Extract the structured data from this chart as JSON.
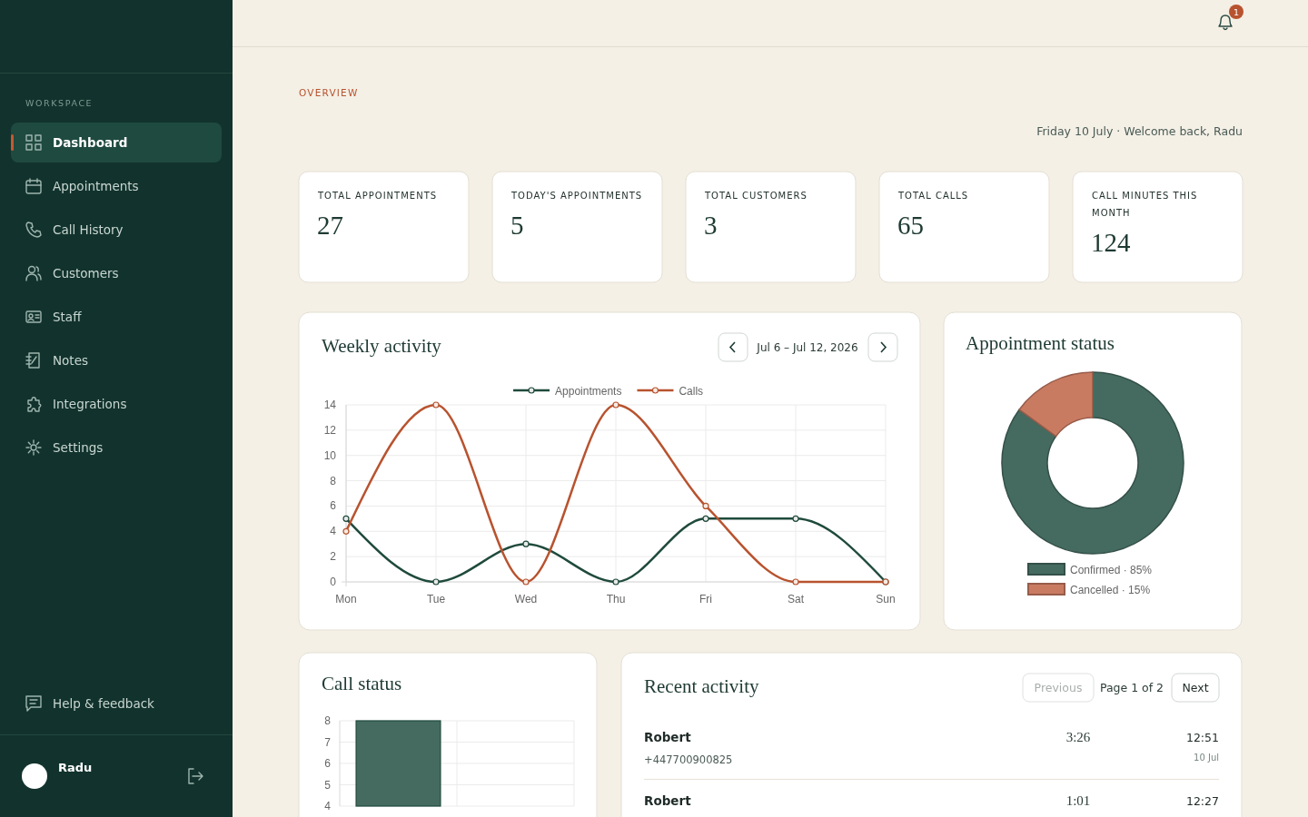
{
  "chart_data": [
    {
      "type": "other",
      "annotations": [
        "WORKSPACE",
        "Dashboard",
        "Appointments",
        "Call History",
        "Customers",
        "Staff",
        "Notes",
        "Integrations",
        "Settings",
        "Help & feedback",
        "Radu"
      ]
    },
    {
      "type": "other",
      "subtitle": "OVERVIEW",
      "annotations": [
        "Friday 10 July · Welcome back, Radu",
        "1"
      ]
    },
    {
      "type": "other",
      "categories": [
        "TOTAL APPOINTMENTS",
        "TODAY'S APPOINTMENTS",
        "TOTAL CUSTOMERS",
        "TOTAL CALLS",
        "CALL MINUTES THIS MONTH"
      ],
      "values": [
        27,
        5,
        3,
        65,
        124
      ],
      "data_labels": true
    },
    {
      "type": "line",
      "title": "Weekly activity",
      "annotations": [
        "Jul 6 – Jul 12, 2026"
      ],
      "categories": [
        "Mon",
        "Tue",
        "Wed",
        "Thu",
        "Fri",
        "Sat",
        "Sun"
      ],
      "series": [
        {
          "name": "Appointments",
          "color": "#1f4a3c",
          "values": [
            5,
            0,
            3,
            0,
            5,
            5,
            0
          ]
        },
        {
          "name": "Calls",
          "color": "#b8532f",
          "values": [
            4,
            14,
            0,
            14,
            6,
            0,
            0
          ]
        }
      ],
      "ylim": [
        0,
        14
      ],
      "yticks": [
        0,
        2,
        4,
        6,
        8,
        10,
        12,
        14
      ],
      "grid": true,
      "legend": "top",
      "marker": "circle"
    },
    {
      "type": "donut",
      "title": "Appointment status",
      "categories": [
        "Confirmed · 85%",
        "Cancelled · 15%"
      ],
      "values": [
        85,
        15
      ],
      "colors": [
        "#456b60",
        "#c97b62"
      ],
      "legend": "bottom"
    },
    {
      "type": "bar",
      "title": "Call status",
      "categories": [
        null,
        null
      ],
      "values": [
        8,
        null
      ],
      "color": "#456b60",
      "ylim": [
        4,
        8
      ],
      "yticks": [
        4,
        5,
        6,
        7,
        8
      ],
      "grid": true
    },
    {
      "type": "other",
      "title": "Recent activity",
      "annotations": [
        "Previous",
        "Page 1 of 2",
        "Next",
        "Robert",
        "+447700900825",
        "3:26",
        "12:51",
        "10 Jul",
        "Robert",
        "1:01",
        "12:27"
      ]
    }
  ]
}
